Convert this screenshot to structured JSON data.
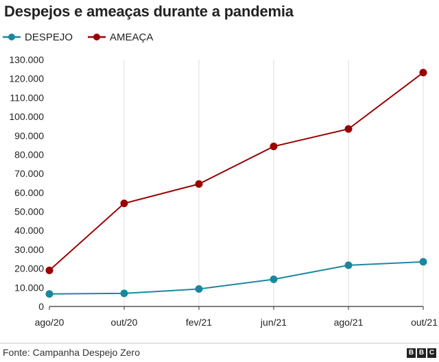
{
  "chart_data": {
    "type": "line",
    "title": "Despejos e ameaças durante a pandemia",
    "categories": [
      "ago/20",
      "out/20",
      "fev/21",
      "jun/21",
      "ago/21",
      "out/21"
    ],
    "series": [
      {
        "name": "DESPEJO",
        "color": "#1a87a0",
        "values": [
          6600,
          6900,
          9200,
          14300,
          21700,
          23500
        ]
      },
      {
        "name": "AMEAÇA",
        "color": "#990000",
        "values": [
          19000,
          54300,
          64500,
          84300,
          93500,
          123200
        ]
      }
    ],
    "ylim": [
      0,
      130000
    ],
    "yticks": [
      "0",
      "10.000",
      "20.000",
      "30.000",
      "40.000",
      "50.000",
      "60.000",
      "70.000",
      "80.000",
      "90.000",
      "100.000",
      "110.000",
      "120.000",
      "130.000"
    ],
    "ytick_values": [
      0,
      10000,
      20000,
      30000,
      40000,
      50000,
      60000,
      70000,
      80000,
      90000,
      100000,
      110000,
      120000,
      130000
    ],
    "grid": "vertical",
    "legend_position": "top-left"
  },
  "source": "Fonte: Campanha Despejo Zero",
  "logo": {
    "letters": [
      "B",
      "B",
      "C"
    ]
  }
}
